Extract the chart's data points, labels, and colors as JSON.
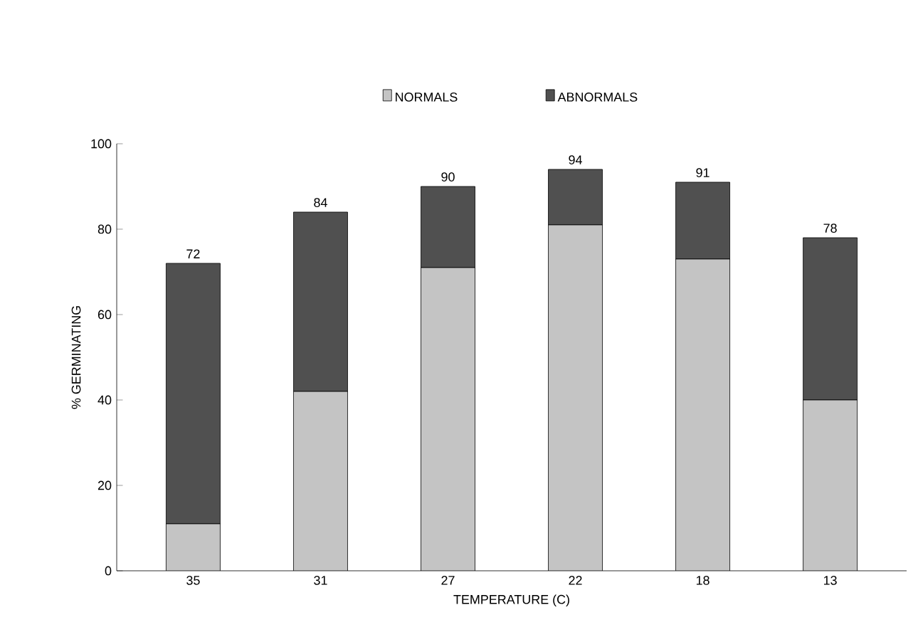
{
  "chart_data": {
    "type": "bar",
    "stacked": true,
    "xlabel": "TEMPERATURE (C)",
    "ylabel": "% GERMINATING",
    "categories": [
      "35",
      "31",
      "27",
      "22",
      "18",
      "13"
    ],
    "series": [
      {
        "name": "NORMALS",
        "color": "#c4c4c4",
        "values": [
          11,
          42,
          71,
          81,
          73,
          40
        ]
      },
      {
        "name": "ABNORMALS",
        "color": "#505050",
        "values": [
          61,
          42,
          19,
          13,
          18,
          38
        ]
      }
    ],
    "totals": [
      "72",
      "84",
      "90",
      "94",
      "91",
      "78"
    ],
    "ylim": [
      0,
      100
    ],
    "yticks": [
      0,
      20,
      40,
      60,
      80,
      100
    ],
    "grid": false,
    "legend": "top"
  }
}
